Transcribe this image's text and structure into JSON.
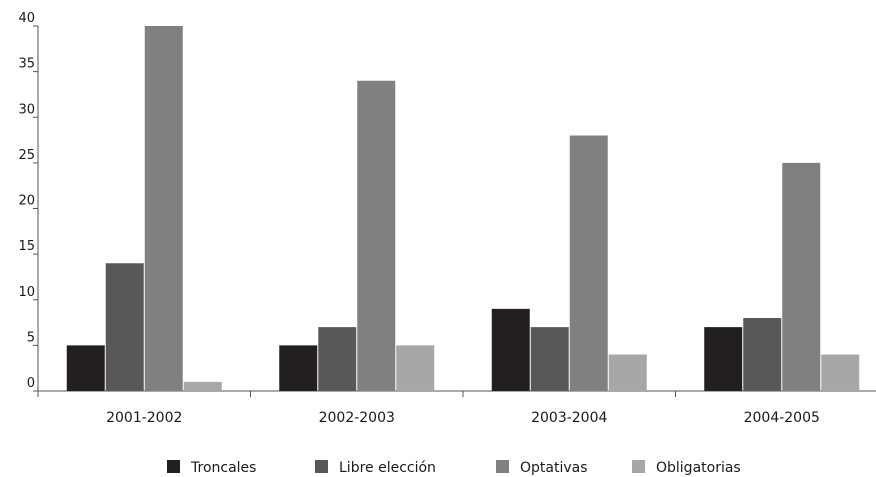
{
  "chart_data": {
    "type": "bar",
    "categories": [
      "2001-2002",
      "2002-2003",
      "2003-2004",
      "2004-2005"
    ],
    "series": [
      {
        "name": "Troncales",
        "values": [
          5,
          5,
          9,
          7
        ],
        "color": "#231f20"
      },
      {
        "name": "Libre elección",
        "values": [
          14,
          7,
          7,
          8
        ],
        "color": "#58585a"
      },
      {
        "name": "Optativas",
        "values": [
          40,
          34,
          28,
          25
        ],
        "color": "#808083"
      },
      {
        "name": "Obligatorias",
        "values": [
          1,
          5,
          4,
          4
        ],
        "color": "#a7a7a9"
      }
    ],
    "ylim": [
      0,
      40
    ],
    "yticks": [
      0,
      5,
      10,
      15,
      20,
      25,
      30,
      35,
      40
    ],
    "grid": false,
    "legend_position": "bottom"
  }
}
